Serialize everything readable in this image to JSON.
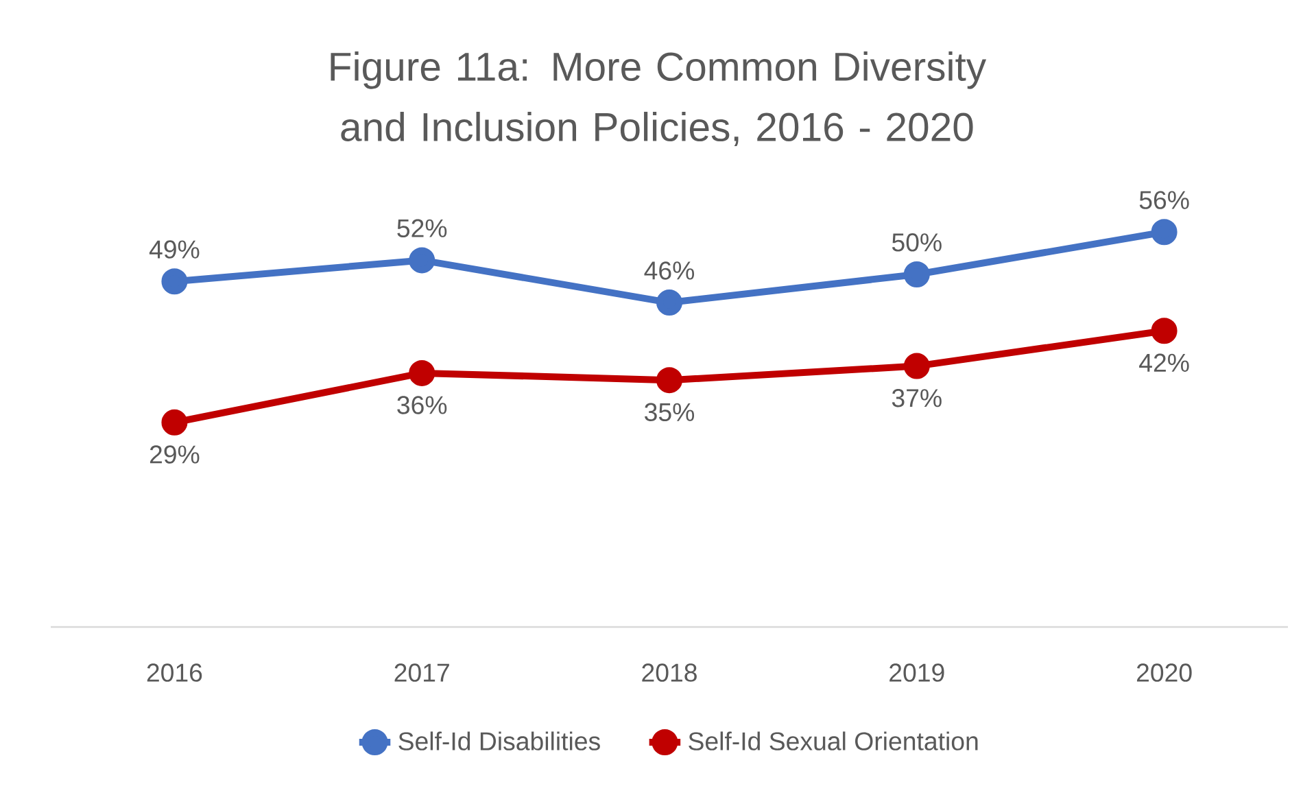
{
  "chart_data": {
    "type": "line",
    "title": "Figure 11a:  More Common Diversity and Inclusion Policies, 2016 - 2020",
    "categories": [
      "2016",
      "2017",
      "2018",
      "2019",
      "2020"
    ],
    "series": [
      {
        "name": "Self-Id Disabilities",
        "color": "#4472c4",
        "values": [
          49,
          52,
          46,
          50,
          56
        ],
        "value_labels": [
          "49%",
          "52%",
          "46%",
          "50%",
          "56%"
        ]
      },
      {
        "name": "Self-Id Sexual Orientation",
        "color": "#c00000",
        "values": [
          29,
          36,
          35,
          37,
          42
        ],
        "value_labels": [
          "29%",
          "36%",
          "35%",
          "37%",
          "42%"
        ]
      }
    ],
    "legend": "bottom",
    "marker": "circle",
    "line_style": "solid"
  }
}
